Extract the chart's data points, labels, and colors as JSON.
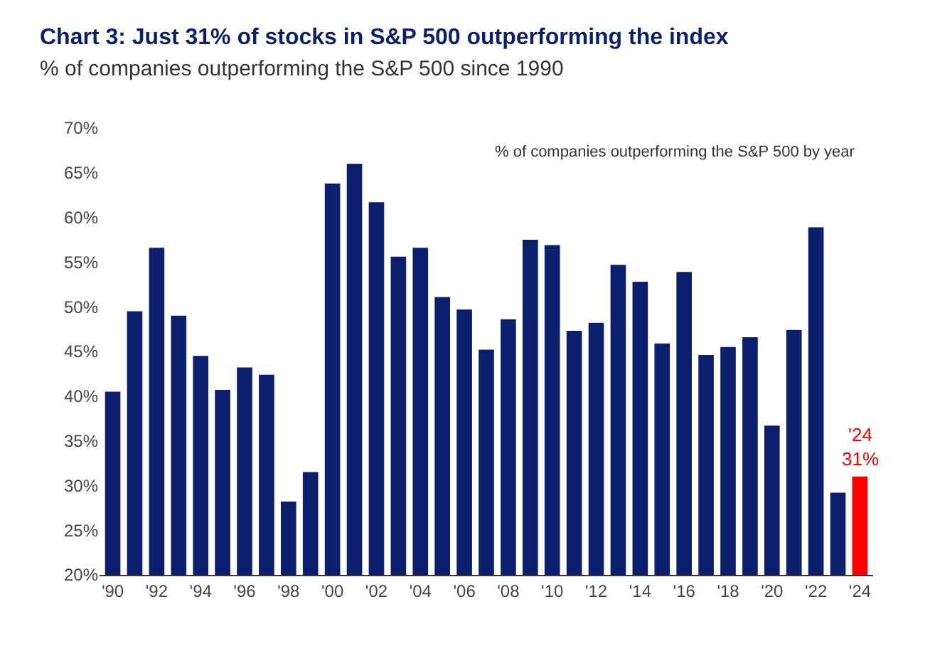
{
  "chart_data": {
    "type": "bar",
    "title": "Chart 3: Just 31% of stocks in S&P 500 outperforming the index",
    "subtitle": "% of companies outperforming the S&P 500 since 1990",
    "categories": [
      "'90",
      null,
      "'92",
      null,
      "'94",
      null,
      "'96",
      null,
      "'98",
      null,
      "'00",
      null,
      "'02",
      null,
      "'04",
      null,
      "'06",
      null,
      "'08",
      null,
      "'10",
      null,
      "'12",
      null,
      "'14",
      null,
      "'16",
      null,
      "'18",
      null,
      "'20",
      null,
      "'22",
      null,
      "'24"
    ],
    "values": [
      40.5,
      49.5,
      56.6,
      49.0,
      44.5,
      40.7,
      43.2,
      42.4,
      28.2,
      31.5,
      63.8,
      66.0,
      61.7,
      55.6,
      56.6,
      51.1,
      49.7,
      45.2,
      48.6,
      57.5,
      56.9,
      47.3,
      48.2,
      54.7,
      52.8,
      45.9,
      53.9,
      44.6,
      45.5,
      46.6,
      36.7,
      47.4,
      58.9,
      29.2,
      31
    ],
    "colors": [
      "#0b1f6e",
      "#0b1f6e",
      "#0b1f6e",
      "#0b1f6e",
      "#0b1f6e",
      "#0b1f6e",
      "#0b1f6e",
      "#0b1f6e",
      "#0b1f6e",
      "#0b1f6e",
      "#0b1f6e",
      "#0b1f6e",
      "#0b1f6e",
      "#0b1f6e",
      "#0b1f6e",
      "#0b1f6e",
      "#0b1f6e",
      "#0b1f6e",
      "#0b1f6e",
      "#0b1f6e",
      "#0b1f6e",
      "#0b1f6e",
      "#0b1f6e",
      "#0b1f6e",
      "#0b1f6e",
      "#0b1f6e",
      "#0b1f6e",
      "#0b1f6e",
      "#0b1f6e",
      "#0b1f6e",
      "#0b1f6e",
      "#0b1f6e",
      "#0b1f6e",
      "#0b1f6e",
      "#ff0000"
    ],
    "ylim": [
      20,
      70
    ],
    "yticks": [
      {
        "value": 20,
        "label": "20%"
      },
      {
        "value": 25,
        "label": "25%"
      },
      {
        "value": 30,
        "label": "30%"
      },
      {
        "value": 35,
        "label": "35%"
      },
      {
        "value": 40,
        "label": "40%"
      },
      {
        "value": 45,
        "label": "45%"
      },
      {
        "value": 50,
        "label": "50%"
      },
      {
        "value": 55,
        "label": "55%"
      },
      {
        "value": 60,
        "label": "60%"
      },
      {
        "value": 65,
        "label": "65%"
      },
      {
        "value": 70,
        "label": "70%"
      }
    ],
    "annotations": [
      "% of companies outperforming the S&P 500 by year",
      {
        "text": "'24\n31%",
        "x": "'24",
        "y": 31
      }
    ],
    "legend": false
  }
}
